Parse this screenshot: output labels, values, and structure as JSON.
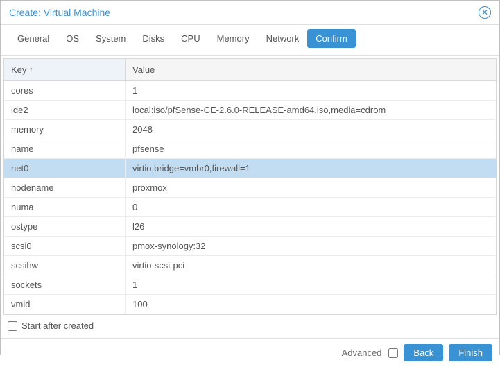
{
  "title": "Create: Virtual Machine",
  "tabs": [
    "General",
    "OS",
    "System",
    "Disks",
    "CPU",
    "Memory",
    "Network",
    "Confirm"
  ],
  "activeTab": 7,
  "columns": {
    "key": "Key",
    "value": "Value"
  },
  "sortIndicator": "↑",
  "selectedRow": 4,
  "rows": [
    {
      "key": "cores",
      "value": "1"
    },
    {
      "key": "ide2",
      "value": "local:iso/pfSense-CE-2.6.0-RELEASE-amd64.iso,media=cdrom"
    },
    {
      "key": "memory",
      "value": "2048"
    },
    {
      "key": "name",
      "value": "pfsense"
    },
    {
      "key": "net0",
      "value": "virtio,bridge=vmbr0,firewall=1"
    },
    {
      "key": "nodename",
      "value": "proxmox"
    },
    {
      "key": "numa",
      "value": "0"
    },
    {
      "key": "ostype",
      "value": "l26"
    },
    {
      "key": "scsi0",
      "value": "pmox-synology:32"
    },
    {
      "key": "scsihw",
      "value": "virtio-scsi-pci"
    },
    {
      "key": "sockets",
      "value": "1"
    },
    {
      "key": "vmid",
      "value": "100"
    }
  ],
  "startAfterLabel": "Start after created",
  "startAfterChecked": false,
  "advancedLabel": "Advanced",
  "advancedChecked": false,
  "backLabel": "Back",
  "finishLabel": "Finish"
}
